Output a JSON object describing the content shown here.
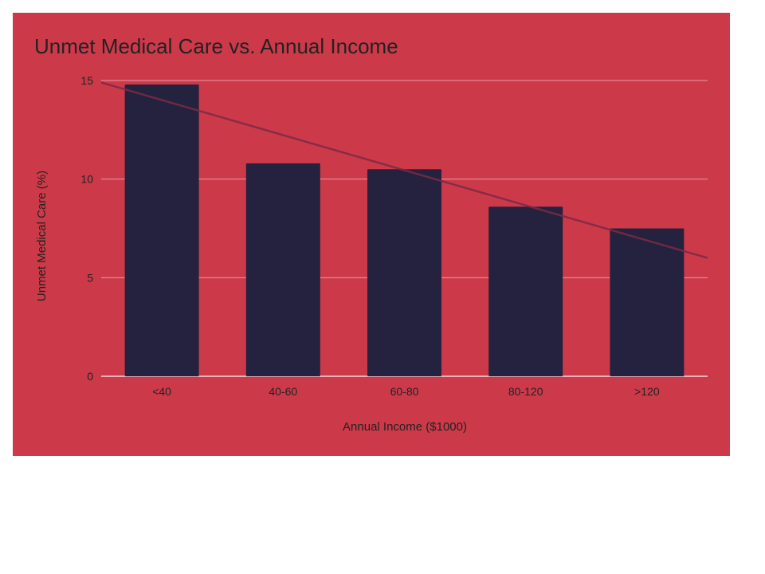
{
  "chart_data": {
    "type": "bar",
    "title": "Unmet Medical Care vs. Annual Income",
    "xlabel": "Annual Income ($1000)",
    "ylabel": "Unmet Medical Care (%)",
    "categories": [
      "<40",
      "40-60",
      "60-80",
      "80-120",
      ">120"
    ],
    "values": [
      14.8,
      10.8,
      10.5,
      8.6,
      7.5
    ],
    "ylim": [
      0,
      15
    ],
    "yticks": [
      0,
      5,
      10,
      15
    ],
    "grid": true,
    "legend": "none",
    "trendline": {
      "type": "linear",
      "start_value": 14.9,
      "end_value": 6.0
    },
    "colors": {
      "background": "#cc3a4a",
      "bar": "#24223e",
      "gridline": "#e79aa3",
      "baseline": "#f2d8dc",
      "trendline": "#7a2a45",
      "text": "#222222"
    }
  }
}
